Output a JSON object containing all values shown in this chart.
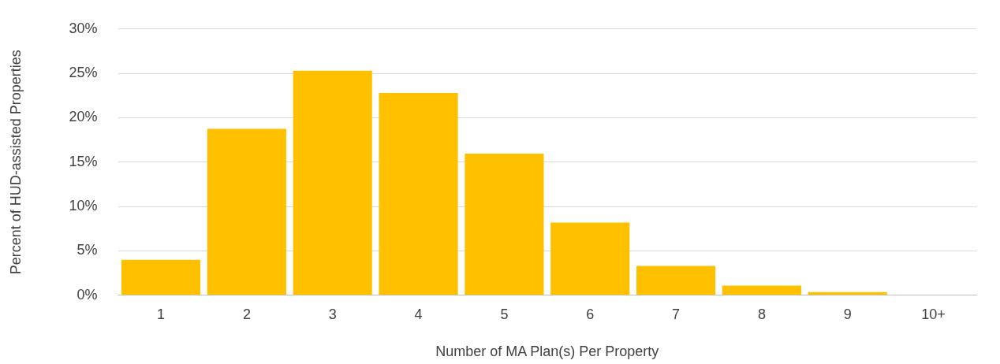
{
  "chart_data": {
    "type": "bar",
    "xlabel": "Number of MA Plan(s) Per Property",
    "ylabel": "Percent of HUD-assisted Properties",
    "categories": [
      "1",
      "2",
      "3",
      "4",
      "5",
      "6",
      "7",
      "8",
      "9",
      "10+"
    ],
    "values": [
      4.0,
      18.75,
      25.3,
      22.8,
      15.95,
      8.2,
      3.3,
      1.1,
      0.35,
      0
    ],
    "color": "#ffc000",
    "ylim": [
      0,
      30
    ],
    "yticks": [
      {
        "value": 0,
        "label": "0%"
      },
      {
        "value": 5,
        "label": "5%"
      },
      {
        "value": 10,
        "label": "10%"
      },
      {
        "value": 15,
        "label": "15%"
      },
      {
        "value": 20,
        "label": "20%"
      },
      {
        "value": 25,
        "label": "25%"
      },
      {
        "value": 30,
        "label": "30%"
      }
    ],
    "grid": "y",
    "legend": false
  }
}
